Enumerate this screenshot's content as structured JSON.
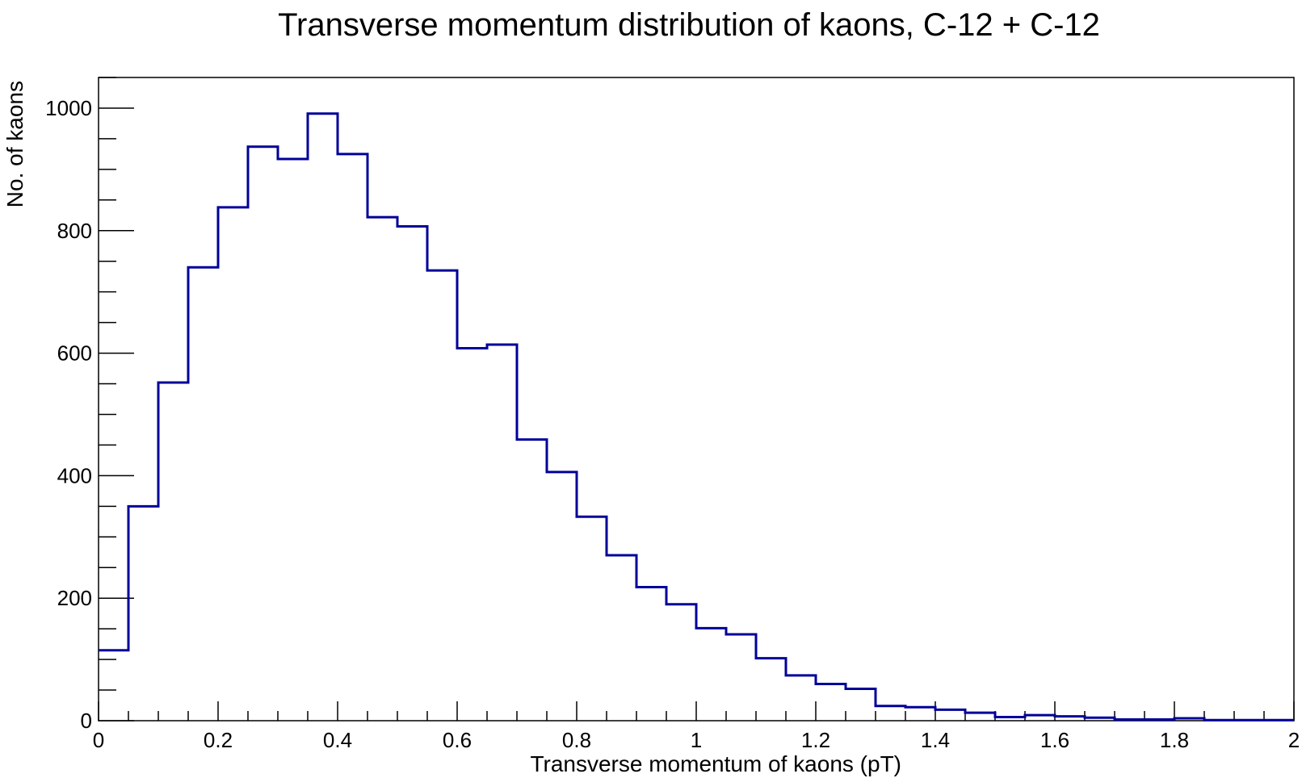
{
  "chart_data": {
    "type": "bar",
    "title": "Transverse momentum distribution of kaons, C-12 + C-12",
    "xlabel": "Transverse momentum of kaons (pT)",
    "ylabel": "No. of kaons",
    "xlim": [
      0,
      2
    ],
    "ylim": [
      0,
      1050
    ],
    "grid": false,
    "legend": "none",
    "line_color": "#000099",
    "x_ticks": [
      0,
      0.2,
      0.4,
      0.6,
      0.8,
      1.0,
      1.2,
      1.4,
      1.6,
      1.8,
      2.0
    ],
    "x_tick_labels": [
      "0",
      "0.2",
      "0.4",
      "0.6",
      "0.8",
      "1",
      "1.2",
      "1.4",
      "1.6",
      "1.8",
      "2"
    ],
    "y_ticks": [
      0,
      200,
      400,
      600,
      800,
      1000
    ],
    "y_tick_labels": [
      "0",
      "200",
      "400",
      "600",
      "800",
      "1000"
    ],
    "bin_width": 0.05,
    "bin_edges_start": 0,
    "values": [
      115,
      350,
      552,
      740,
      838,
      937,
      917,
      991,
      925,
      822,
      807,
      735,
      608,
      614,
      459,
      406,
      333,
      270,
      218,
      190,
      151,
      141,
      102,
      74,
      60,
      52,
      24,
      22,
      18,
      13,
      6,
      9,
      7,
      5,
      2,
      2,
      4,
      1,
      1,
      1
    ]
  }
}
